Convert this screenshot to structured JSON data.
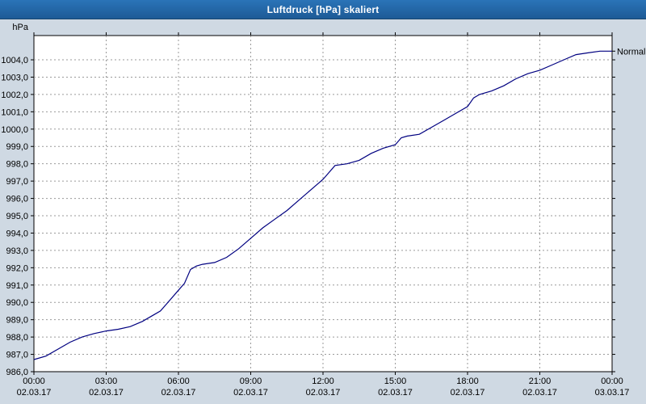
{
  "window": {
    "title": "Luftdruck [hPa] skaliert"
  },
  "colors": {
    "titlebar": "#1d5a96",
    "window_bg": "#cfd9e3",
    "plot_bg": "#ffffff",
    "border": "#000000",
    "grid": "#9a9a9a",
    "line": "#000080",
    "text": "#000000"
  },
  "chart_data": {
    "type": "line",
    "title": "Luftdruck [hPa] skaliert",
    "xlabel": "",
    "ylabel": "hPa",
    "ylim": [
      986.0,
      1005.4
    ],
    "xlim_hours": [
      0,
      24
    ],
    "grid": "dotted",
    "legend_position": "right",
    "annotation": {
      "label": "Normal",
      "value": 1004.5
    },
    "y_ticks": [
      {
        "value": 986.0,
        "label": "986,0"
      },
      {
        "value": 987.0,
        "label": "987,0"
      },
      {
        "value": 988.0,
        "label": "988,0"
      },
      {
        "value": 989.0,
        "label": "989,0"
      },
      {
        "value": 990.0,
        "label": "990,0"
      },
      {
        "value": 991.0,
        "label": "991,0"
      },
      {
        "value": 992.0,
        "label": "992,0"
      },
      {
        "value": 993.0,
        "label": "993,0"
      },
      {
        "value": 994.0,
        "label": "994,0"
      },
      {
        "value": 995.0,
        "label": "995,0"
      },
      {
        "value": 996.0,
        "label": "996,0"
      },
      {
        "value": 997.0,
        "label": "997,0"
      },
      {
        "value": 998.0,
        "label": "998,0"
      },
      {
        "value": 999.0,
        "label": "999,0"
      },
      {
        "value": 1000.0,
        "label": "1000,0"
      },
      {
        "value": 1001.0,
        "label": "1001,0"
      },
      {
        "value": 1002.0,
        "label": "1002,0"
      },
      {
        "value": 1003.0,
        "label": "1003,0"
      },
      {
        "value": 1004.0,
        "label": "1004,0"
      }
    ],
    "x_ticks": [
      {
        "hour": 0,
        "time": "00:00",
        "date": "02.03.17"
      },
      {
        "hour": 3,
        "time": "03:00",
        "date": "02.03.17"
      },
      {
        "hour": 6,
        "time": "06:00",
        "date": "02.03.17"
      },
      {
        "hour": 9,
        "time": "09:00",
        "date": "02.03.17"
      },
      {
        "hour": 12,
        "time": "12:00",
        "date": "02.03.17"
      },
      {
        "hour": 15,
        "time": "15:00",
        "date": "02.03.17"
      },
      {
        "hour": 18,
        "time": "18:00",
        "date": "02.03.17"
      },
      {
        "hour": 21,
        "time": "21:00",
        "date": "02.03.17"
      },
      {
        "hour": 24,
        "time": "00:00",
        "date": "03.03.17"
      }
    ],
    "series": [
      {
        "name": "Luftdruck",
        "color": "#000080",
        "points": [
          [
            0,
            986.7
          ],
          [
            0.5,
            986.9
          ],
          [
            1,
            987.3
          ],
          [
            1.5,
            987.7
          ],
          [
            2,
            988.0
          ],
          [
            2.5,
            988.2
          ],
          [
            3,
            988.35
          ],
          [
            3.5,
            988.45
          ],
          [
            4,
            988.6
          ],
          [
            4.5,
            988.9
          ],
          [
            5,
            989.3
          ],
          [
            5.25,
            989.5
          ],
          [
            5.5,
            989.9
          ],
          [
            6,
            990.7
          ],
          [
            6.25,
            991.1
          ],
          [
            6.5,
            991.9
          ],
          [
            6.75,
            992.1
          ],
          [
            7,
            992.2
          ],
          [
            7.5,
            992.3
          ],
          [
            8,
            992.6
          ],
          [
            8.5,
            993.1
          ],
          [
            9,
            993.7
          ],
          [
            9.5,
            994.3
          ],
          [
            10,
            994.8
          ],
          [
            10.5,
            995.3
          ],
          [
            11,
            995.9
          ],
          [
            11.5,
            996.5
          ],
          [
            12,
            997.1
          ],
          [
            12.25,
            997.5
          ],
          [
            12.5,
            997.9
          ],
          [
            13,
            998.0
          ],
          [
            13.5,
            998.2
          ],
          [
            14,
            998.6
          ],
          [
            14.5,
            998.9
          ],
          [
            15,
            999.1
          ],
          [
            15.25,
            999.5
          ],
          [
            15.5,
            999.6
          ],
          [
            16,
            999.7
          ],
          [
            16.5,
            1000.1
          ],
          [
            17,
            1000.5
          ],
          [
            17.5,
            1000.9
          ],
          [
            18,
            1001.3
          ],
          [
            18.25,
            1001.8
          ],
          [
            18.5,
            1002.0
          ],
          [
            19,
            1002.2
          ],
          [
            19.5,
            1002.5
          ],
          [
            20,
            1002.9
          ],
          [
            20.5,
            1003.2
          ],
          [
            21,
            1003.4
          ],
          [
            21.5,
            1003.7
          ],
          [
            22,
            1004.0
          ],
          [
            22.5,
            1004.3
          ],
          [
            23,
            1004.4
          ],
          [
            23.5,
            1004.5
          ],
          [
            24,
            1004.5
          ]
        ]
      }
    ]
  }
}
